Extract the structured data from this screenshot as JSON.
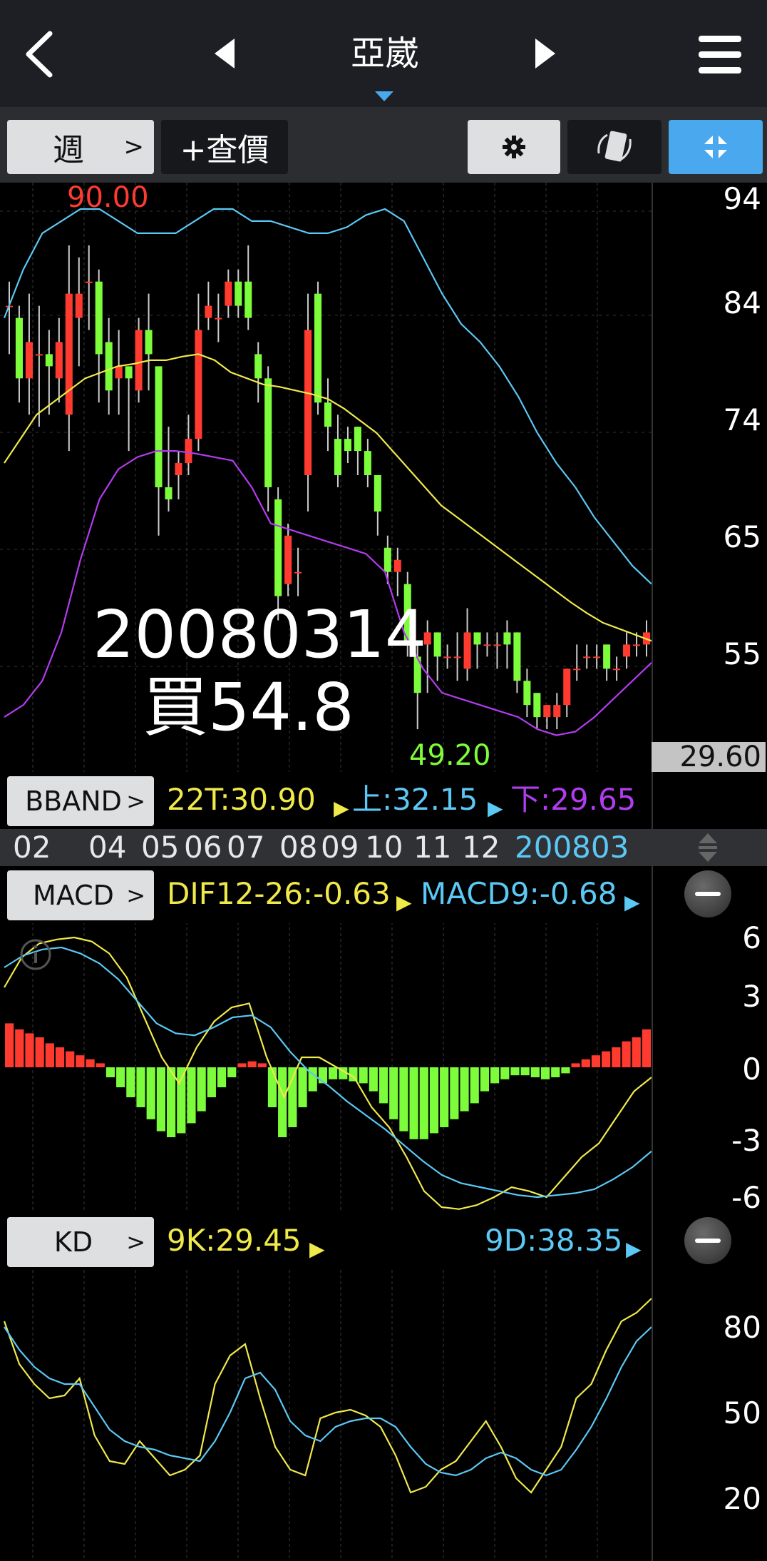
{
  "header": {
    "title": "亞崴",
    "back_icon": "chevron-left-icon",
    "prev_icon": "triangle-left-icon",
    "next_icon": "triangle-right-icon",
    "menu_icon": "hamburger-menu-icon"
  },
  "toolbar": {
    "period_label": "週",
    "period_chevron": ">",
    "quote_label": "+查價",
    "settings_icon": "gear-icon",
    "rotate_icon": "rotate-screen-icon",
    "fullscreen_icon": "collapse-arrows-icon",
    "active_color": "#4aa8ee"
  },
  "price_chart": {
    "y_ticks": [
      "94",
      "84",
      "74",
      "65",
      "55"
    ],
    "high_label": "90.00",
    "low_label": "49.20",
    "cursor_value": "29.60",
    "overlay_date": "20080314",
    "overlay_price": "買54.8",
    "colors": {
      "up": "#ff3b30",
      "down": "#7cfc3a",
      "mid": "#f0e94a",
      "upper": "#5bc8f5",
      "lower": "#b23cf0"
    }
  },
  "bband": {
    "button_label": "BBAND",
    "chevron": ">",
    "mid": "22T:30.90",
    "upper": "上:32.15",
    "lower": "下:29.65"
  },
  "date_axis": [
    "02",
    "04",
    "05",
    "06",
    "07",
    "08",
    "09",
    "10",
    "11",
    "12",
    "200803"
  ],
  "macd": {
    "button_label": "MACD",
    "chevron": ">",
    "dif": "DIF12-26:-0.63",
    "macd": "MACD9:-0.68",
    "y_ticks": [
      "6",
      "3",
      "0",
      "-3",
      "-6"
    ]
  },
  "kd": {
    "button_label": "KD",
    "chevron": ">",
    "k": "9K:29.45",
    "d": "9D:38.35",
    "y_ticks": [
      "80",
      "50",
      "20"
    ]
  },
  "chart_data": {
    "type": "candlestick",
    "period": "weekly",
    "y_range": [
      49.2,
      94
    ],
    "candles": [
      {
        "o": 85,
        "c": 85,
        "h": 87,
        "l": 81
      },
      {
        "o": 84,
        "c": 79,
        "h": 85,
        "l": 77
      },
      {
        "o": 79,
        "c": 82,
        "h": 86,
        "l": 76
      },
      {
        "o": 81,
        "c": 81,
        "h": 85,
        "l": 75
      },
      {
        "o": 81,
        "c": 80,
        "h": 83,
        "l": 76
      },
      {
        "o": 79,
        "c": 82,
        "h": 84,
        "l": 77
      },
      {
        "o": 76,
        "c": 86,
        "h": 90,
        "l": 73
      },
      {
        "o": 84,
        "c": 86,
        "h": 89,
        "l": 80
      },
      {
        "o": 87,
        "c": 87,
        "h": 90,
        "l": 83
      },
      {
        "o": 87,
        "c": 81,
        "h": 88,
        "l": 77
      },
      {
        "o": 82,
        "c": 78,
        "h": 84,
        "l": 76
      },
      {
        "o": 79,
        "c": 80,
        "h": 83,
        "l": 76
      },
      {
        "o": 80,
        "c": 79,
        "h": 80,
        "l": 73
      },
      {
        "o": 78,
        "c": 83,
        "h": 84,
        "l": 77
      },
      {
        "o": 83,
        "c": 81,
        "h": 86,
        "l": 78
      },
      {
        "o": 80,
        "c": 70,
        "h": 80,
        "l": 66
      },
      {
        "o": 70,
        "c": 69,
        "h": 75,
        "l": 68
      },
      {
        "o": 71,
        "c": 72,
        "h": 73,
        "l": 69
      },
      {
        "o": 72,
        "c": 74,
        "h": 76,
        "l": 71
      },
      {
        "o": 74,
        "c": 83,
        "h": 86,
        "l": 73
      },
      {
        "o": 84,
        "c": 85,
        "h": 87,
        "l": 83
      },
      {
        "o": 84,
        "c": 84,
        "h": 86,
        "l": 82
      },
      {
        "o": 85,
        "c": 87,
        "h": 88,
        "l": 84
      },
      {
        "o": 87,
        "c": 85,
        "h": 88,
        "l": 84
      },
      {
        "o": 87,
        "c": 84,
        "h": 90,
        "l": 83
      },
      {
        "o": 81,
        "c": 79,
        "h": 82,
        "l": 77
      },
      {
        "o": 79,
        "c": 70,
        "h": 80,
        "l": 68
      },
      {
        "o": 69,
        "c": 61,
        "h": 70,
        "l": 59
      },
      {
        "o": 62,
        "c": 66,
        "h": 67,
        "l": 61
      },
      {
        "o": 63,
        "c": 63,
        "h": 65,
        "l": 61
      },
      {
        "o": 71,
        "c": 83,
        "h": 86,
        "l": 68
      },
      {
        "o": 86,
        "c": 77,
        "h": 87,
        "l": 76
      },
      {
        "o": 77,
        "c": 75,
        "h": 79,
        "l": 73
      },
      {
        "o": 74,
        "c": 71,
        "h": 76,
        "l": 70
      },
      {
        "o": 74,
        "c": 73,
        "h": 75,
        "l": 72
      },
      {
        "o": 75,
        "c": 73,
        "h": 75,
        "l": 71
      },
      {
        "o": 73,
        "c": 71,
        "h": 74,
        "l": 70
      },
      {
        "o": 71,
        "c": 68,
        "h": 71,
        "l": 66
      },
      {
        "o": 65,
        "c": 63,
        "h": 66,
        "l": 62
      },
      {
        "o": 63,
        "c": 64,
        "h": 65,
        "l": 61
      },
      {
        "o": 62,
        "c": 57,
        "h": 63,
        "l": 56
      },
      {
        "o": 56,
        "c": 53,
        "h": 57,
        "l": 50
      },
      {
        "o": 57,
        "c": 58,
        "h": 59,
        "l": 53
      },
      {
        "o": 58,
        "c": 56,
        "h": 58,
        "l": 54
      },
      {
        "o": 56,
        "c": 56,
        "h": 57,
        "l": 55
      },
      {
        "o": 56,
        "c": 56,
        "h": 58,
        "l": 54
      },
      {
        "o": 55,
        "c": 58,
        "h": 60,
        "l": 54
      },
      {
        "o": 58,
        "c": 57,
        "h": 58,
        "l": 55
      },
      {
        "o": 57,
        "c": 57,
        "h": 58,
        "l": 56
      },
      {
        "o": 57,
        "c": 57,
        "h": 58,
        "l": 55
      },
      {
        "o": 58,
        "c": 57,
        "h": 59,
        "l": 55
      },
      {
        "o": 58,
        "c": 54,
        "h": 58,
        "l": 53
      },
      {
        "o": 54,
        "c": 52,
        "h": 55,
        "l": 51
      },
      {
        "o": 53,
        "c": 51,
        "h": 53,
        "l": 50
      },
      {
        "o": 51,
        "c": 52,
        "h": 52,
        "l": 50
      },
      {
        "o": 51,
        "c": 52,
        "h": 53,
        "l": 50
      },
      {
        "o": 52,
        "c": 55,
        "h": 55,
        "l": 51
      },
      {
        "o": 55,
        "c": 55,
        "h": 57,
        "l": 54
      },
      {
        "o": 56,
        "c": 56,
        "h": 57,
        "l": 55
      },
      {
        "o": 56,
        "c": 56,
        "h": 57,
        "l": 55
      },
      {
        "o": 57,
        "c": 55,
        "h": 57,
        "l": 54
      },
      {
        "o": 55,
        "c": 55,
        "h": 56,
        "l": 54
      },
      {
        "o": 56,
        "c": 57,
        "h": 58,
        "l": 55
      },
      {
        "o": 57,
        "c": 57,
        "h": 58,
        "l": 56
      },
      {
        "o": 57,
        "c": 58,
        "h": 59,
        "l": 56
      }
    ],
    "bband_mid": [
      72,
      74,
      76,
      77,
      78,
      79,
      79.5,
      80,
      80.2,
      80.5,
      80.5,
      80.8,
      81,
      80.5,
      79.5,
      79,
      78.5,
      78.3,
      78,
      77.7,
      77.3,
      76.5,
      75.5,
      74.5,
      73,
      71.5,
      70,
      68.5,
      67.5,
      66.5,
      65.5,
      64.5,
      63.5,
      62.5,
      61.5,
      60.5,
      59.6,
      58.8,
      58.3,
      57.8,
      57.3
    ],
    "bband_upper": [
      84,
      88,
      91,
      92,
      93,
      93,
      92,
      91,
      91,
      91,
      92,
      93,
      93,
      92,
      92,
      91.5,
      91,
      91,
      91.5,
      92.5,
      93,
      92,
      89,
      86,
      83.5,
      82,
      80,
      77.5,
      74.5,
      72,
      70,
      67.5,
      65.5,
      63.5,
      62
    ],
    "bband_lower": [
      51,
      52,
      54,
      58,
      64,
      69,
      71.5,
      72.5,
      73,
      73,
      72.8,
      72.5,
      72.2,
      70,
      67,
      66.5,
      66,
      65.5,
      65,
      64.5,
      63,
      58,
      55,
      53,
      52.5,
      52,
      51.5,
      51,
      50,
      49.5,
      49.8,
      51,
      52.5,
      54,
      55.5
    ],
    "macd_hist": [
      2.2,
      1.9,
      1.7,
      1.5,
      1.2,
      1.0,
      0.8,
      0.6,
      0.4,
      0.2,
      -0.5,
      -1.0,
      -1.5,
      -2.0,
      -2.6,
      -3.2,
      -3.5,
      -3.3,
      -2.8,
      -2.2,
      -1.5,
      -1.0,
      -0.5,
      0.2,
      0.3,
      0.2,
      -2.0,
      -3.5,
      -3.0,
      -2.0,
      -1.2,
      -0.8,
      -0.6,
      -0.6,
      -0.7,
      -0.8,
      -1.2,
      -1.8,
      -2.6,
      -3.2,
      -3.6,
      -3.6,
      -3.3,
      -3.0,
      -2.6,
      -2.2,
      -1.8,
      -1.2,
      -0.8,
      -0.6,
      -0.4,
      -0.4,
      -0.5,
      -0.6,
      -0.5,
      -0.3,
      0.2,
      0.4,
      0.6,
      0.8,
      1.0,
      1.3,
      1.5,
      1.9
    ],
    "macd_dif": [
      4,
      5.5,
      6.2,
      6.4,
      6.5,
      6.3,
      5.7,
      4.5,
      2.5,
      0.5,
      -0.8,
      1.0,
      2.3,
      3.0,
      3.2,
      0.5,
      -1.5,
      0.5,
      0.5,
      0,
      -0.5,
      -2.0,
      -3.0,
      -4.5,
      -6.2,
      -7.0,
      -7.1,
      -6.9,
      -6.5,
      -6.0,
      -6.2,
      -6.5,
      -5.5,
      -4.5,
      -3.8,
      -2.5,
      -1.2,
      -0.5
    ],
    "macd_signal": [
      5,
      5.6,
      5.9,
      6.0,
      5.7,
      5.2,
      4.4,
      3.3,
      2.2,
      1.7,
      1.6,
      2.0,
      2.5,
      2.6,
      2.0,
      0.8,
      -0.2,
      -0.9,
      -1.7,
      -2.4,
      -3.1,
      -3.9,
      -4.7,
      -5.4,
      -5.8,
      -6.0,
      -6.2,
      -6.4,
      -6.5,
      -6.4,
      -6.3,
      -6.1,
      -5.6,
      -5.0,
      -4.2
    ],
    "kd_k": [
      82,
      67,
      60,
      55,
      56,
      62,
      42,
      33,
      32,
      40,
      34,
      28,
      30,
      35,
      60,
      70,
      74,
      55,
      38,
      30,
      28,
      48,
      50,
      51,
      49,
      45,
      35,
      22,
      24,
      30,
      33,
      40,
      47,
      38,
      27,
      22,
      30,
      38,
      55,
      60,
      72,
      82,
      85,
      90
    ],
    "kd_d": [
      80,
      72,
      66,
      62,
      60,
      60,
      52,
      44,
      40,
      38,
      37,
      35,
      34,
      33,
      40,
      50,
      62,
      64,
      58,
      47,
      42,
      40,
      45,
      47,
      48,
      48,
      45,
      38,
      32,
      29,
      28,
      30,
      34,
      36,
      34,
      30,
      28,
      30,
      37,
      45,
      55,
      66,
      75,
      80
    ]
  }
}
